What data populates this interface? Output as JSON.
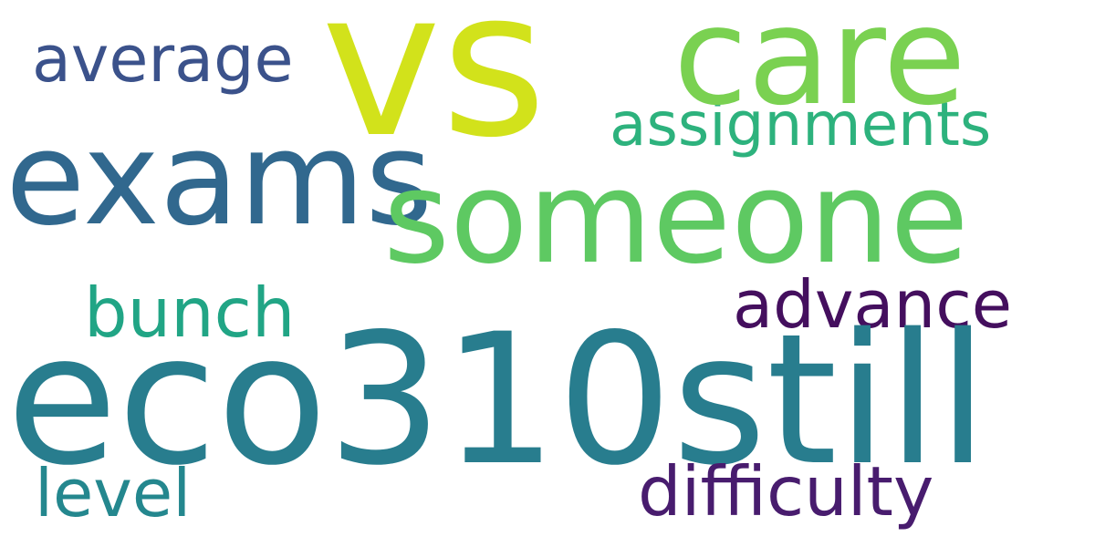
{
  "background": "#ffffff",
  "words": {
    "vs": {
      "text": "vs",
      "color": "#d2e21b"
    },
    "care": {
      "text": "care",
      "color": "#7ad151"
    },
    "average": {
      "text": "average",
      "color": "#3b528b"
    },
    "assignments": {
      "text": "assignments",
      "color": "#2db27d"
    },
    "exams": {
      "text": "exams",
      "color": "#31688e"
    },
    "someone": {
      "text": "someone",
      "color": "#5ec962"
    },
    "bunch": {
      "text": "bunch",
      "color": "#21a585"
    },
    "advance": {
      "text": "advance",
      "color": "#440f5e"
    },
    "eco310still": {
      "text": "eco310still",
      "color": "#287d8e"
    },
    "level": {
      "text": "level",
      "color": "#24878e"
    },
    "difficulty": {
      "text": "difficulty",
      "color": "#481c6e"
    }
  }
}
